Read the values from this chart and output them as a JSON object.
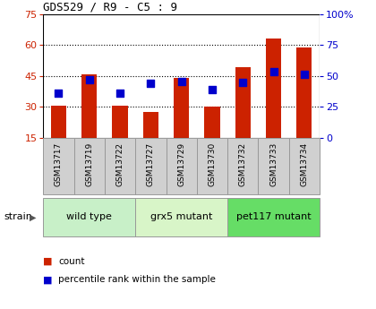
{
  "title": "GDS529 / R9 - C5 : 9",
  "samples": [
    "GSM13717",
    "GSM13719",
    "GSM13722",
    "GSM13727",
    "GSM13729",
    "GSM13730",
    "GSM13732",
    "GSM13733",
    "GSM13734"
  ],
  "counts": [
    30.5,
    45.5,
    30.5,
    27.5,
    44,
    30,
    49,
    63,
    58.5
  ],
  "percentile_ranks": [
    36,
    47,
    36,
    44,
    45,
    39,
    44.5,
    53,
    51
  ],
  "ylim": [
    15,
    75
  ],
  "yticks_left": [
    15,
    30,
    45,
    60,
    75
  ],
  "yticks_right": [
    0,
    25,
    50,
    75,
    100
  ],
  "y2lim": [
    0,
    100
  ],
  "bar_color": "#CC2200",
  "dot_color": "#0000CC",
  "groups": [
    {
      "label": "wild type",
      "start": 0,
      "end": 3,
      "color": "#c8f0c8"
    },
    {
      "label": "grx5 mutant",
      "start": 3,
      "end": 6,
      "color": "#d8f5c8"
    },
    {
      "label": "pet117 mutant",
      "start": 6,
      "end": 9,
      "color": "#66dd66"
    }
  ],
  "strain_label": "strain",
  "left_tick_color": "#CC2200",
  "right_tick_color": "#0000CC",
  "grid_color": "#000000",
  "bar_width": 0.5,
  "dot_size": 28,
  "bg_color": "#ffffff"
}
